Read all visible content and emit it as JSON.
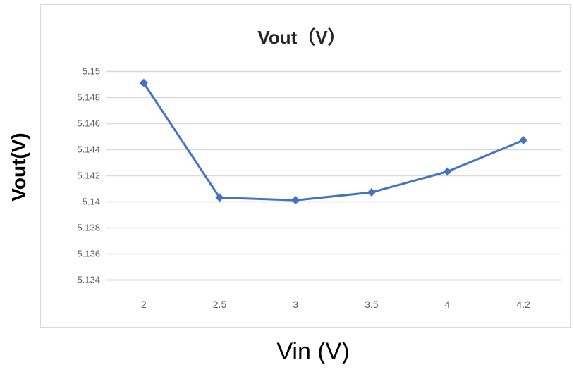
{
  "chart_data": {
    "type": "line",
    "title": "Vout（V）",
    "xlabel": "Vin (V)",
    "ylabel": "Vout(V)",
    "categories": [
      "2",
      "2.5",
      "3",
      "3.5",
      "4",
      "4.2"
    ],
    "series": [
      {
        "values": [
          5.1491,
          5.1403,
          5.1401,
          5.1407,
          5.1423,
          5.1447
        ]
      }
    ],
    "ylim": [
      5.134,
      5.15
    ],
    "yticks": [
      "5.15",
      "5.148",
      "5.146",
      "5.144",
      "5.142",
      "5.14",
      "5.138",
      "5.136",
      "5.134"
    ],
    "grid": true,
    "legend": "none",
    "colors": {
      "series": "#4472c4",
      "grid": "#d9d9d9",
      "axis": "#bfbfbf"
    }
  }
}
